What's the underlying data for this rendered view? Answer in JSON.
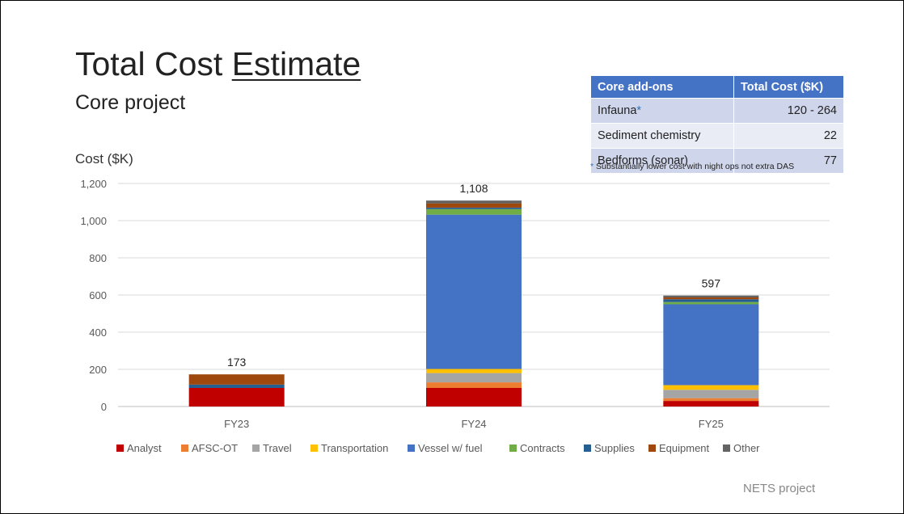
{
  "slide": {
    "title_prefix": "Total Cost ",
    "title_underlined": "Estimate",
    "subtitle": "Core project",
    "footer": "NETS project"
  },
  "addons_table": {
    "headers": [
      "Core add-ons",
      "Total Cost ($K)"
    ],
    "rows": [
      {
        "name": "Infauna",
        "star": "*",
        "value": "120 - 264"
      },
      {
        "name": "Sediment chemistry",
        "star": "",
        "value": "22"
      },
      {
        "name": "Bedforms (sonar)",
        "star": "",
        "value": "77"
      }
    ],
    "footnote_star": "*",
    "footnote": "Substantially lower cost with night ops not extra DAS"
  },
  "chart_data": {
    "type": "bar",
    "stacked": true,
    "ylabel": "Cost ($K)",
    "ylim": [
      0,
      1200
    ],
    "yticks": [
      0,
      200,
      400,
      600,
      800,
      1000,
      1200
    ],
    "ytick_labels": [
      "0",
      "200",
      "400",
      "600",
      "800",
      "1,000",
      "1,200"
    ],
    "grid": true,
    "legend_position": "bottom",
    "categories": [
      "FY23",
      "FY24",
      "FY25"
    ],
    "totals": [
      173,
      1108,
      597
    ],
    "total_labels": [
      "173",
      "1,108",
      "597"
    ],
    "series": [
      {
        "name": "Analyst",
        "color": "#c00000",
        "values": [
          100,
          100,
          30
        ]
      },
      {
        "name": "AFSC-OT",
        "color": "#ed7d31",
        "values": [
          0,
          30,
          15
        ]
      },
      {
        "name": "Travel",
        "color": "#a5a5a5",
        "values": [
          0,
          50,
          45
        ]
      },
      {
        "name": "Transportation",
        "color": "#ffc000",
        "values": [
          0,
          22,
          25
        ]
      },
      {
        "name": "Vessel w/ fuel",
        "color": "#4472c4",
        "values": [
          0,
          830,
          435
        ]
      },
      {
        "name": "Contracts",
        "color": "#70ad47",
        "values": [
          0,
          30,
          12
        ]
      },
      {
        "name": "Supplies",
        "color": "#255e91",
        "values": [
          18,
          8,
          15
        ]
      },
      {
        "name": "Equipment",
        "color": "#9e480e",
        "values": [
          55,
          23,
          10
        ]
      },
      {
        "name": "Other",
        "color": "#636363",
        "values": [
          0,
          15,
          10
        ]
      }
    ]
  }
}
